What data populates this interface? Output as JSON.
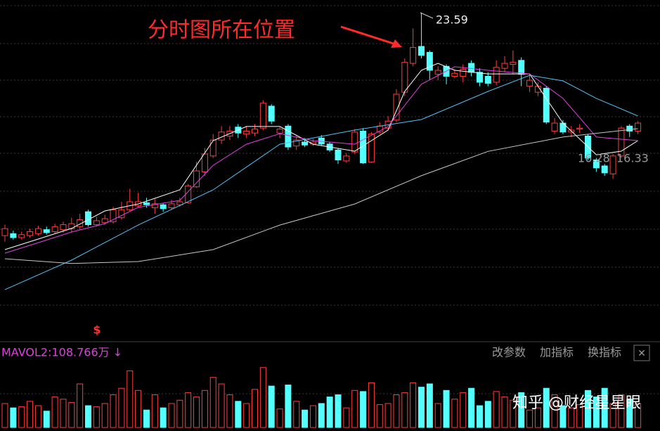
{
  "chart_data": {
    "type": "candlestick",
    "up_color": "#ff3c3c",
    "down_color": "#54ffff",
    "ylim": [
      7.11,
      24.23
    ],
    "open": [
      12.4,
      12.5,
      12.3,
      12.4,
      12.5,
      12.7,
      12.6,
      12.7,
      12.75,
      12.85,
      13.6,
      12.95,
      13.05,
      13.1,
      13.3,
      13.7,
      13.9,
      14.05,
      13.8,
      13.95,
      13.8,
      13.95,
      14.05,
      14.85,
      15.6,
      16.4,
      17.2,
      17.4,
      17.85,
      17.5,
      17.55,
      17.8,
      18.9,
      17.55,
      17.9,
      16.9,
      17.1,
      17.0,
      17.3,
      17.0,
      16.7,
      16.15,
      16.6,
      17.65,
      16.1,
      17.6,
      17.8,
      18.2,
      19.6,
      21.05,
      21.9,
      21.6,
      20.5,
      20.9,
      20.4,
      20.4,
      21.05,
      20.6,
      20.4,
      20.1,
      20.8,
      21.0,
      21.2,
      19.9,
      19.6,
      19.8,
      17.65,
      18.05,
      17.6,
      17.75,
      17.4,
      16.2,
      15.9,
      15.5,
      16.4,
      17.9,
      17.65
    ],
    "high": [
      12.95,
      12.65,
      12.6,
      12.75,
      12.9,
      12.85,
      13.0,
      13.1,
      13.3,
      13.5,
      13.7,
      13.35,
      13.45,
      13.85,
      14.1,
      14.75,
      14.55,
      14.3,
      14.25,
      14.05,
      14.2,
      14.3,
      15.0,
      16.1,
      16.8,
      17.5,
      17.9,
      17.9,
      18.0,
      17.9,
      18.0,
      19.2,
      19.0,
      17.85,
      18.0,
      17.4,
      17.3,
      17.25,
      17.45,
      17.1,
      16.8,
      16.55,
      17.75,
      17.8,
      17.6,
      18.1,
      18.4,
      19.75,
      21.3,
      22.8,
      23.59,
      21.7,
      20.9,
      21.0,
      20.75,
      21.0,
      21.2,
      20.8,
      20.6,
      21.2,
      21.4,
      21.7,
      21.35,
      20.5,
      20.1,
      19.9,
      18.3,
      18.2,
      17.9,
      18.0,
      17.5,
      16.3,
      16.0,
      16.5,
      17.9,
      18.0,
      18.15
    ],
    "low": [
      12.1,
      12.2,
      12.2,
      12.3,
      12.4,
      12.45,
      12.5,
      12.55,
      12.6,
      12.7,
      12.85,
      12.85,
      12.95,
      13.0,
      13.2,
      13.6,
      13.8,
      13.8,
      13.5,
      13.6,
      13.7,
      13.85,
      14.0,
      14.8,
      15.4,
      16.3,
      17.0,
      17.2,
      17.3,
      17.3,
      17.4,
      17.7,
      18.0,
      17.3,
      16.7,
      16.7,
      16.85,
      16.9,
      16.9,
      16.6,
      16.0,
      16.05,
      16.5,
      16.0,
      16.05,
      17.5,
      17.7,
      18.1,
      19.4,
      20.9,
      21.3,
      20.2,
      20.2,
      20.0,
      20.3,
      20.1,
      20.4,
      19.9,
      19.9,
      19.95,
      20.6,
      20.5,
      19.9,
      19.6,
      19.4,
      18.0,
      17.5,
      17.5,
      17.35,
      17.55,
      16.2,
      15.6,
      15.4,
      15.25,
      16.3,
      17.35,
      17.5
    ],
    "close": [
      12.75,
      12.3,
      12.45,
      12.6,
      12.75,
      12.55,
      12.85,
      12.95,
      13.0,
      13.2,
      12.95,
      13.15,
      13.25,
      13.7,
      13.7,
      14.1,
      14.1,
      13.95,
      14.0,
      13.75,
      14.0,
      14.1,
      14.9,
      15.65,
      16.5,
      17.2,
      17.6,
      17.65,
      17.55,
      17.65,
      17.75,
      19.05,
      18.15,
      17.75,
      16.85,
      17.2,
      16.95,
      17.1,
      17.0,
      16.7,
      16.2,
      16.4,
      17.6,
      16.05,
      17.5,
      17.9,
      18.15,
      19.5,
      21.1,
      21.85,
      21.45,
      20.7,
      20.7,
      20.4,
      20.55,
      20.75,
      20.6,
      20.1,
      20.05,
      20.85,
      21.05,
      21.1,
      20.5,
      20.2,
      19.9,
      18.1,
      18.05,
      17.6,
      17.7,
      17.8,
      16.3,
      15.8,
      15.55,
      16.4,
      17.8,
      17.65,
      18.05
    ],
    "ma_lines": [
      {
        "color": "#ffffff",
        "x": [
          0,
          4,
          8,
          12,
          16,
          21,
          25,
          29,
          33,
          37,
          42,
          46,
          48,
          50,
          52,
          54,
          58,
          63,
          67,
          71,
          74,
          76
        ],
        "values": [
          11.7,
          12.23,
          12.76,
          13.64,
          13.99,
          14.7,
          17.17,
          17.88,
          17.88,
          16.99,
          16.64,
          17.7,
          19.64,
          20.7,
          21.05,
          20.7,
          20.52,
          20.52,
          18.05,
          16.46,
          16.64,
          17.17
        ]
      },
      {
        "color": "#e040e0",
        "x": [
          0,
          4,
          8,
          12,
          16,
          21,
          25,
          29,
          33,
          37,
          42,
          46,
          50,
          54,
          58,
          63,
          67,
          71,
          76
        ],
        "values": [
          11.52,
          12.05,
          12.58,
          13.0,
          13.82,
          14.17,
          15.93,
          16.99,
          17.52,
          17.17,
          16.99,
          17.88,
          20.0,
          20.88,
          20.7,
          20.52,
          19.29,
          17.35,
          17.17
        ]
      },
      {
        "color": "#4fc3f7",
        "x": [
          0,
          8,
          16,
          25,
          33,
          42,
          50,
          58,
          63,
          67,
          71,
          76
        ],
        "values": [
          9.69,
          11.17,
          12.93,
          14.7,
          16.99,
          17.7,
          18.23,
          19.64,
          20.45,
          20.17,
          19.29,
          18.41
        ]
      },
      {
        "color": "#c8c8c8",
        "x": [
          0,
          8,
          16,
          25,
          33,
          42,
          50,
          58,
          67,
          76
        ],
        "values": [
          11.24,
          11.0,
          11.1,
          11.7,
          12.93,
          13.99,
          15.41,
          16.63,
          17.35,
          17.77
        ]
      }
    ],
    "volume": {
      "vlim": [
        0,
        300
      ],
      "values": [
        110,
        90,
        95,
        120,
        100,
        75,
        140,
        130,
        115,
        200,
        100,
        95,
        110,
        150,
        180,
        260,
        170,
        80,
        150,
        90,
        110,
        125,
        160,
        140,
        170,
        230,
        200,
        150,
        120,
        110,
        175,
        275,
        190,
        85,
        195,
        120,
        80,
        100,
        110,
        140,
        150,
        90,
        170,
        165,
        205,
        105,
        110,
        150,
        160,
        205,
        185,
        200,
        110,
        170,
        130,
        160,
        180,
        100,
        120,
        165,
        140,
        125,
        160,
        80,
        90,
        180,
        150,
        100,
        90,
        105,
        170,
        140,
        180,
        110,
        150,
        130,
        110
      ]
    },
    "annotation": "分时图所在位置",
    "high_label": "23.59",
    "low_label_1": "16.28",
    "low_label_2": "16.33",
    "marker": "$",
    "volume_label": "MAVOL2:108.766万 ↓",
    "buttons": [
      "改参数",
      "加指标",
      "换指标",
      "✕"
    ],
    "watermark": "知乎 @财经星星眼"
  }
}
